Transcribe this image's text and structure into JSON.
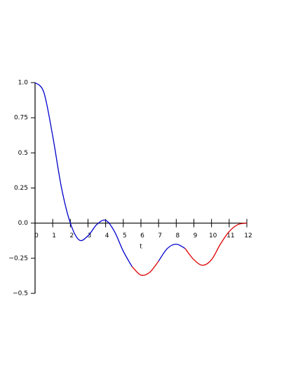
{
  "chart_data": {
    "type": "line",
    "x_label": "t",
    "x": [
      0,
      0.5,
      1,
      1.5,
      2,
      2.5,
      3,
      3.5,
      4,
      4.5,
      5,
      5.5,
      6,
      6.5,
      7,
      7.5,
      8,
      8.5,
      9,
      9.5,
      10,
      10.5,
      11,
      11.5,
      12
    ],
    "series": [
      {
        "color": "#0000cc",
        "values": [
          1.0,
          0.93,
          0.62,
          0.25,
          0.0,
          -0.12,
          -0.09,
          -0.01,
          0.02,
          -0.06,
          -0.2,
          -0.31,
          null,
          null,
          -0.27,
          -0.18,
          -0.15,
          -0.18,
          null,
          null,
          null,
          null,
          null,
          null,
          null
        ]
      },
      {
        "color": "#dd0000",
        "values": [
          null,
          null,
          null,
          null,
          null,
          null,
          null,
          null,
          null,
          null,
          null,
          -0.31,
          -0.37,
          -0.35,
          -0.27,
          null,
          null,
          -0.18,
          -0.26,
          -0.3,
          -0.26,
          -0.15,
          -0.06,
          -0.01,
          0.0
        ]
      }
    ],
    "xlim": [
      0,
      12
    ],
    "ylim": [
      -0.5,
      1.0
    ],
    "xticks": [
      0,
      1,
      2,
      3,
      4,
      5,
      6,
      7,
      8,
      9,
      10,
      11,
      12
    ],
    "yticks": [
      {
        "value": 1.0,
        "label": "1.0"
      },
      {
        "value": 0.75,
        "label": "0.75"
      },
      {
        "value": 0.5,
        "label": "0.5"
      },
      {
        "value": 0.25,
        "label": "0.25"
      },
      {
        "value": 0.0,
        "label": "0.0"
      },
      {
        "value": -0.25,
        "label": "−0.25"
      },
      {
        "value": -0.5,
        "label": "−0.5"
      }
    ]
  }
}
